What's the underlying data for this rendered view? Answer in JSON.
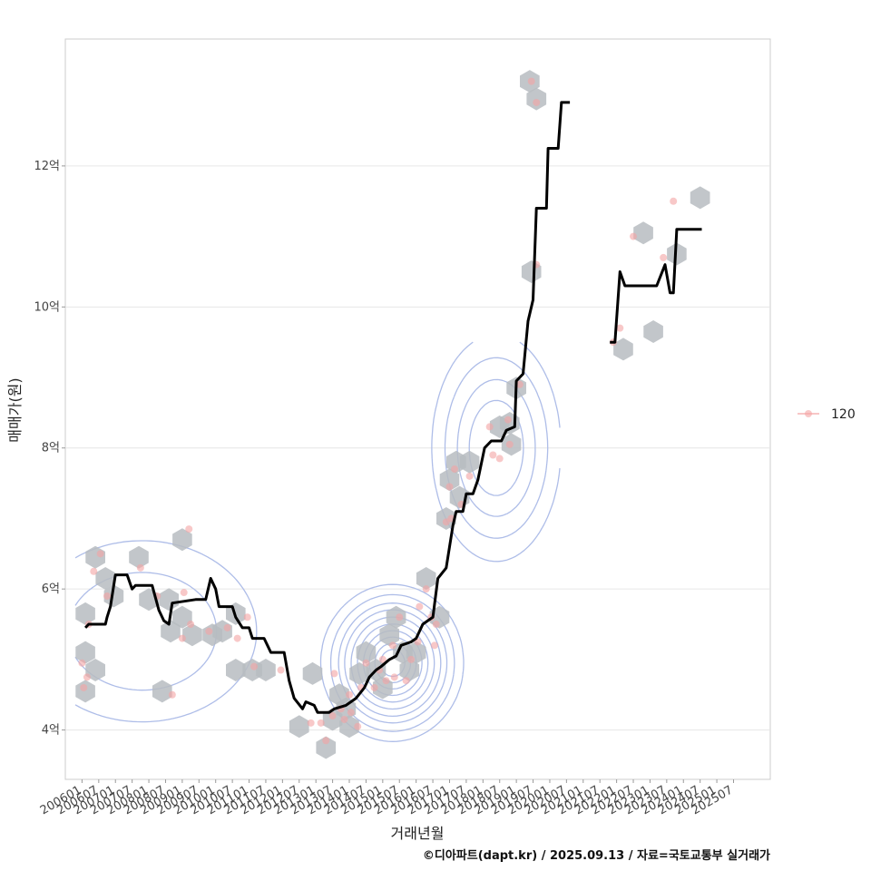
{
  "chart_data": {
    "type": "line",
    "title": "",
    "xlabel": "거래년월",
    "ylabel": "매매가(원)",
    "caption": "©디아파트(dapt.kr) / 2025.09.13 / 자료=국토교통부 실거래가",
    "x_range": [
      2005.5,
      2026.6
    ],
    "ylim": [
      3.3,
      13.8
    ],
    "x_ticks": [
      {
        "x": 2006.0,
        "label": "200601"
      },
      {
        "x": 2006.5,
        "label": "200607"
      },
      {
        "x": 2007.0,
        "label": "200701"
      },
      {
        "x": 2007.5,
        "label": "200707"
      },
      {
        "x": 2008.0,
        "label": "200801"
      },
      {
        "x": 2008.5,
        "label": "200807"
      },
      {
        "x": 2009.0,
        "label": "200901"
      },
      {
        "x": 2009.5,
        "label": "200907"
      },
      {
        "x": 2010.0,
        "label": "201001"
      },
      {
        "x": 2010.5,
        "label": "201007"
      },
      {
        "x": 2011.0,
        "label": "201101"
      },
      {
        "x": 2011.5,
        "label": "201107"
      },
      {
        "x": 2012.0,
        "label": "201201"
      },
      {
        "x": 2012.5,
        "label": "201207"
      },
      {
        "x": 2013.0,
        "label": "201301"
      },
      {
        "x": 2013.5,
        "label": "201307"
      },
      {
        "x": 2014.0,
        "label": "201401"
      },
      {
        "x": 2014.5,
        "label": "201407"
      },
      {
        "x": 2015.0,
        "label": "201501"
      },
      {
        "x": 2015.5,
        "label": "201507"
      },
      {
        "x": 2016.0,
        "label": "201601"
      },
      {
        "x": 2016.5,
        "label": "201607"
      },
      {
        "x": 2017.0,
        "label": "201701"
      },
      {
        "x": 2017.5,
        "label": "201707"
      },
      {
        "x": 2018.0,
        "label": "201801"
      },
      {
        "x": 2018.5,
        "label": "201807"
      },
      {
        "x": 2019.0,
        "label": "201901"
      },
      {
        "x": 2019.5,
        "label": "201907"
      },
      {
        "x": 2020.0,
        "label": "202001"
      },
      {
        "x": 2020.5,
        "label": "202007"
      },
      {
        "x": 2021.0,
        "label": "202101"
      },
      {
        "x": 2021.5,
        "label": "202107"
      },
      {
        "x": 2022.0,
        "label": "202201"
      },
      {
        "x": 2022.5,
        "label": "202207"
      },
      {
        "x": 2023.0,
        "label": "202301"
      },
      {
        "x": 2023.5,
        "label": "202307"
      },
      {
        "x": 2024.0,
        "label": "202401"
      },
      {
        "x": 2024.5,
        "label": "202407"
      },
      {
        "x": 2025.0,
        "label": "202501"
      },
      {
        "x": 2025.5,
        "label": "202507"
      }
    ],
    "y_ticks": [
      {
        "y": 4,
        "label": "4억"
      },
      {
        "y": 6,
        "label": "6억"
      },
      {
        "y": 8,
        "label": "8억"
      },
      {
        "y": 10,
        "label": "10억"
      },
      {
        "y": 12,
        "label": "12억"
      }
    ],
    "legend": {
      "label": "120",
      "placement": "right"
    },
    "colors": {
      "points": "#f4a3a3",
      "hex": "#b7bcc1",
      "contour": "#aebde8",
      "line": "#000000",
      "grid": "#e6e6e6",
      "panel_border": "#cccccc"
    },
    "moving_average": [
      [
        [
          2006.1,
          5.45
        ],
        [
          2006.2,
          5.5
        ],
        [
          2006.7,
          5.5
        ],
        [
          2006.75,
          5.6
        ],
        [
          2006.85,
          5.75
        ],
        [
          2007.0,
          6.2
        ],
        [
          2007.35,
          6.2
        ],
        [
          2007.5,
          6.0
        ],
        [
          2007.6,
          6.05
        ],
        [
          2008.1,
          6.05
        ],
        [
          2008.3,
          5.7
        ],
        [
          2008.45,
          5.55
        ],
        [
          2008.6,
          5.5
        ],
        [
          2008.7,
          5.8
        ],
        [
          2009.4,
          5.85
        ],
        [
          2009.7,
          5.85
        ],
        [
          2009.85,
          6.15
        ],
        [
          2010.0,
          6.0
        ],
        [
          2010.1,
          5.75
        ],
        [
          2010.5,
          5.75
        ],
        [
          2010.6,
          5.6
        ],
        [
          2010.8,
          5.45
        ],
        [
          2011.0,
          5.45
        ],
        [
          2011.1,
          5.3
        ],
        [
          2011.45,
          5.3
        ],
        [
          2011.55,
          5.2
        ],
        [
          2011.65,
          5.1
        ],
        [
          2012.05,
          5.1
        ],
        [
          2012.2,
          4.7
        ],
        [
          2012.35,
          4.45
        ],
        [
          2012.6,
          4.3
        ],
        [
          2012.7,
          4.4
        ],
        [
          2012.95,
          4.35
        ],
        [
          2013.05,
          4.25
        ],
        [
          2013.4,
          4.25
        ],
        [
          2013.55,
          4.3
        ],
        [
          2013.9,
          4.35
        ],
        [
          2014.2,
          4.45
        ],
        [
          2014.45,
          4.6
        ],
        [
          2014.6,
          4.75
        ],
        [
          2014.8,
          4.85
        ],
        [
          2014.95,
          4.9
        ],
        [
          2015.2,
          5.0
        ],
        [
          2015.4,
          5.05
        ],
        [
          2015.55,
          5.2
        ],
        [
          2015.85,
          5.25
        ],
        [
          2016.0,
          5.3
        ],
        [
          2016.2,
          5.5
        ],
        [
          2016.35,
          5.55
        ],
        [
          2016.5,
          5.6
        ],
        [
          2016.65,
          6.15
        ],
        [
          2016.9,
          6.3
        ],
        [
          2017.1,
          6.9
        ],
        [
          2017.2,
          7.1
        ],
        [
          2017.4,
          7.1
        ],
        [
          2017.5,
          7.35
        ],
        [
          2017.7,
          7.35
        ],
        [
          2017.85,
          7.55
        ],
        [
          2018.05,
          8.0
        ],
        [
          2018.25,
          8.1
        ],
        [
          2018.55,
          8.1
        ],
        [
          2018.7,
          8.25
        ],
        [
          2018.95,
          8.3
        ],
        [
          2019.0,
          8.95
        ],
        [
          2019.2,
          9.05
        ],
        [
          2019.35,
          9.8
        ],
        [
          2019.5,
          10.1
        ],
        [
          2019.6,
          11.4
        ],
        [
          2019.9,
          11.4
        ],
        [
          2019.95,
          12.25
        ],
        [
          2020.25,
          12.25
        ],
        [
          2020.35,
          12.9
        ],
        [
          2020.6,
          12.9
        ]
      ],
      [
        [
          2021.8,
          9.5
        ],
        [
          2021.95,
          9.5
        ],
        [
          2022.1,
          10.5
        ],
        [
          2022.25,
          10.3
        ],
        [
          2023.2,
          10.3
        ],
        [
          2023.45,
          10.6
        ],
        [
          2023.6,
          10.2
        ],
        [
          2023.7,
          10.2
        ],
        [
          2023.8,
          11.1
        ],
        [
          2024.55,
          11.1
        ]
      ]
    ],
    "hexbins": [
      [
        2006.1,
        5.65
      ],
      [
        2006.1,
        5.1
      ],
      [
        2006.1,
        4.55
      ],
      [
        2006.4,
        4.85
      ],
      [
        2006.4,
        6.45
      ],
      [
        2006.7,
        6.15
      ],
      [
        2006.95,
        5.9
      ],
      [
        2007.7,
        6.45
      ],
      [
        2008.0,
        5.85
      ],
      [
        2008.4,
        4.55
      ],
      [
        2008.6,
        5.85
      ],
      [
        2008.65,
        5.4
      ],
      [
        2009.0,
        5.6
      ],
      [
        2009.0,
        6.7
      ],
      [
        2009.3,
        5.35
      ],
      [
        2009.9,
        5.35
      ],
      [
        2010.2,
        5.4
      ],
      [
        2010.6,
        5.65
      ],
      [
        2010.6,
        4.85
      ],
      [
        2011.1,
        4.85
      ],
      [
        2011.5,
        4.85
      ],
      [
        2012.5,
        4.05
      ],
      [
        2012.9,
        4.8
      ],
      [
        2013.3,
        3.75
      ],
      [
        2013.5,
        4.15
      ],
      [
        2013.7,
        4.5
      ],
      [
        2013.9,
        4.3
      ],
      [
        2014.0,
        4.05
      ],
      [
        2014.3,
        4.8
      ],
      [
        2014.5,
        5.1
      ],
      [
        2014.8,
        4.85
      ],
      [
        2015.0,
        4.6
      ],
      [
        2015.2,
        5.35
      ],
      [
        2015.4,
        5.6
      ],
      [
        2015.6,
        5.1
      ],
      [
        2015.8,
        4.85
      ],
      [
        2016.0,
        5.1
      ],
      [
        2016.3,
        6.15
      ],
      [
        2016.7,
        5.6
      ],
      [
        2016.9,
        7.0
      ],
      [
        2017.0,
        7.55
      ],
      [
        2017.2,
        7.8
      ],
      [
        2017.3,
        7.3
      ],
      [
        2017.6,
        7.8
      ],
      [
        2018.5,
        8.3
      ],
      [
        2018.8,
        8.35
      ],
      [
        2018.85,
        8.05
      ],
      [
        2019.0,
        8.85
      ],
      [
        2019.4,
        13.2
      ],
      [
        2019.6,
        12.95
      ],
      [
        2019.45,
        10.5
      ],
      [
        2022.2,
        9.4
      ],
      [
        2022.8,
        11.05
      ],
      [
        2023.1,
        9.65
      ],
      [
        2023.8,
        10.75
      ],
      [
        2024.5,
        11.55
      ]
    ],
    "points": [
      [
        2006.0,
        4.95
      ],
      [
        2006.05,
        4.6
      ],
      [
        2006.15,
        4.75
      ],
      [
        2006.2,
        5.5
      ],
      [
        2006.35,
        6.25
      ],
      [
        2006.55,
        6.5
      ],
      [
        2006.75,
        5.9
      ],
      [
        2007.75,
        6.3
      ],
      [
        2008.25,
        5.9
      ],
      [
        2008.7,
        4.5
      ],
      [
        2009.0,
        5.3
      ],
      [
        2009.05,
        5.95
      ],
      [
        2009.25,
        5.5
      ],
      [
        2009.2,
        6.85
      ],
      [
        2009.8,
        5.4
      ],
      [
        2010.35,
        5.45
      ],
      [
        2010.65,
        5.3
      ],
      [
        2010.95,
        5.6
      ],
      [
        2011.15,
        4.9
      ],
      [
        2011.95,
        4.85
      ],
      [
        2012.85,
        4.1
      ],
      [
        2013.15,
        4.1
      ],
      [
        2013.3,
        3.85
      ],
      [
        2013.5,
        4.2
      ],
      [
        2013.55,
        4.8
      ],
      [
        2013.75,
        4.3
      ],
      [
        2013.85,
        4.15
      ],
      [
        2014.0,
        4.5
      ],
      [
        2014.05,
        4.25
      ],
      [
        2014.25,
        4.05
      ],
      [
        2014.35,
        4.6
      ],
      [
        2014.5,
        4.95
      ],
      [
        2014.75,
        4.6
      ],
      [
        2014.9,
        4.85
      ],
      [
        2015.0,
        5.0
      ],
      [
        2015.1,
        4.7
      ],
      [
        2015.3,
        5.2
      ],
      [
        2015.5,
        5.6
      ],
      [
        2015.35,
        4.75
      ],
      [
        2015.7,
        4.7
      ],
      [
        2015.85,
        5.0
      ],
      [
        2016.05,
        5.25
      ],
      [
        2016.1,
        5.75
      ],
      [
        2016.3,
        6.0
      ],
      [
        2016.45,
        5.6
      ],
      [
        2016.55,
        5.2
      ],
      [
        2016.6,
        5.5
      ],
      [
        2016.9,
        6.95
      ],
      [
        2017.0,
        7.45
      ],
      [
        2017.05,
        7.0
      ],
      [
        2017.15,
        7.7
      ],
      [
        2017.35,
        7.2
      ],
      [
        2017.6,
        7.6
      ],
      [
        2018.2,
        8.3
      ],
      [
        2018.3,
        7.9
      ],
      [
        2018.5,
        7.85
      ],
      [
        2018.75,
        8.4
      ],
      [
        2018.8,
        8.05
      ],
      [
        2019.1,
        8.9
      ],
      [
        2019.45,
        13.2
      ],
      [
        2019.6,
        12.9
      ],
      [
        2019.6,
        10.6
      ],
      [
        2021.9,
        9.5
      ],
      [
        2022.1,
        9.7
      ],
      [
        2022.5,
        11.0
      ],
      [
        2023.4,
        10.7
      ],
      [
        2023.7,
        11.5
      ]
    ]
  }
}
